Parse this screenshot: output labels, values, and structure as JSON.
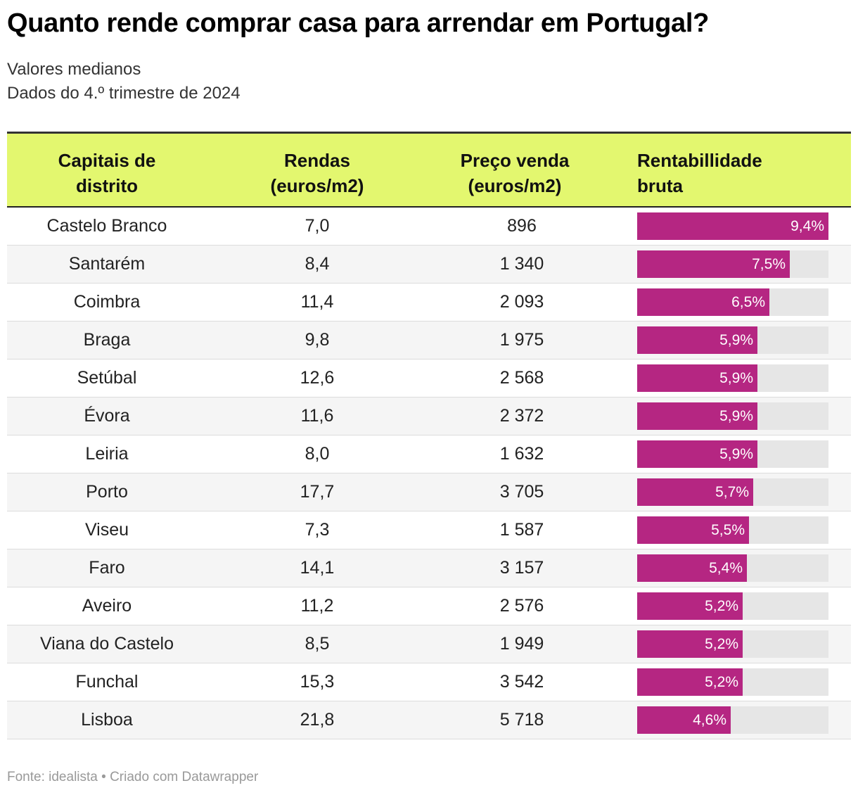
{
  "header": {
    "title": "Quanto rende comprar casa para arrendar em Portugal?",
    "subtitle_line1": "Valores medianos",
    "subtitle_line2": "Dados do 4.º trimestre de 2024"
  },
  "footer": {
    "source": "Fonte: idealista",
    "separator": "•",
    "credit": "Criado com Datawrapper"
  },
  "colors": {
    "header_bg": "#e3f76f",
    "bar": "#b52682",
    "bar_track": "#e6e6e6"
  },
  "chart_data": {
    "type": "table",
    "title": "Quanto rende comprar casa para arrendar em Portugal?",
    "subtitle": [
      "Valores medianos",
      "Dados do 4.º trimestre de 2024"
    ],
    "columns": [
      {
        "label_line1": "Capitais de",
        "label_line2": "distrito"
      },
      {
        "label_line1": "Rendas",
        "label_line2": "(euros/m2)"
      },
      {
        "label_line1": "Preço venda",
        "label_line2": "(euros/m2)"
      },
      {
        "label_line1": "Rentabillidade",
        "label_line2": "bruta"
      }
    ],
    "bar_max": 9.4,
    "rows": [
      {
        "city": "Castelo Branco",
        "rent": "7,0",
        "price": "896",
        "yield_value": 9.4,
        "yield_label": "9,4%"
      },
      {
        "city": "Santarém",
        "rent": "8,4",
        "price": "1 340",
        "yield_value": 7.5,
        "yield_label": "7,5%"
      },
      {
        "city": "Coimbra",
        "rent": "11,4",
        "price": "2 093",
        "yield_value": 6.5,
        "yield_label": "6,5%"
      },
      {
        "city": "Braga",
        "rent": "9,8",
        "price": "1 975",
        "yield_value": 5.9,
        "yield_label": "5,9%"
      },
      {
        "city": "Setúbal",
        "rent": "12,6",
        "price": "2 568",
        "yield_value": 5.9,
        "yield_label": "5,9%"
      },
      {
        "city": "Évora",
        "rent": "11,6",
        "price": "2 372",
        "yield_value": 5.9,
        "yield_label": "5,9%"
      },
      {
        "city": "Leiria",
        "rent": "8,0",
        "price": "1 632",
        "yield_value": 5.9,
        "yield_label": "5,9%"
      },
      {
        "city": "Porto",
        "rent": "17,7",
        "price": "3 705",
        "yield_value": 5.7,
        "yield_label": "5,7%"
      },
      {
        "city": "Viseu",
        "rent": "7,3",
        "price": "1 587",
        "yield_value": 5.5,
        "yield_label": "5,5%"
      },
      {
        "city": "Faro",
        "rent": "14,1",
        "price": "3 157",
        "yield_value": 5.4,
        "yield_label": "5,4%"
      },
      {
        "city": "Aveiro",
        "rent": "11,2",
        "price": "2 576",
        "yield_value": 5.2,
        "yield_label": "5,2%"
      },
      {
        "city": "Viana do Castelo",
        "rent": "8,5",
        "price": "1 949",
        "yield_value": 5.2,
        "yield_label": "5,2%"
      },
      {
        "city": "Funchal",
        "rent": "15,3",
        "price": "3 542",
        "yield_value": 5.2,
        "yield_label": "5,2%"
      },
      {
        "city": "Lisboa",
        "rent": "21,8",
        "price": "5 718",
        "yield_value": 4.6,
        "yield_label": "4,6%"
      }
    ]
  }
}
